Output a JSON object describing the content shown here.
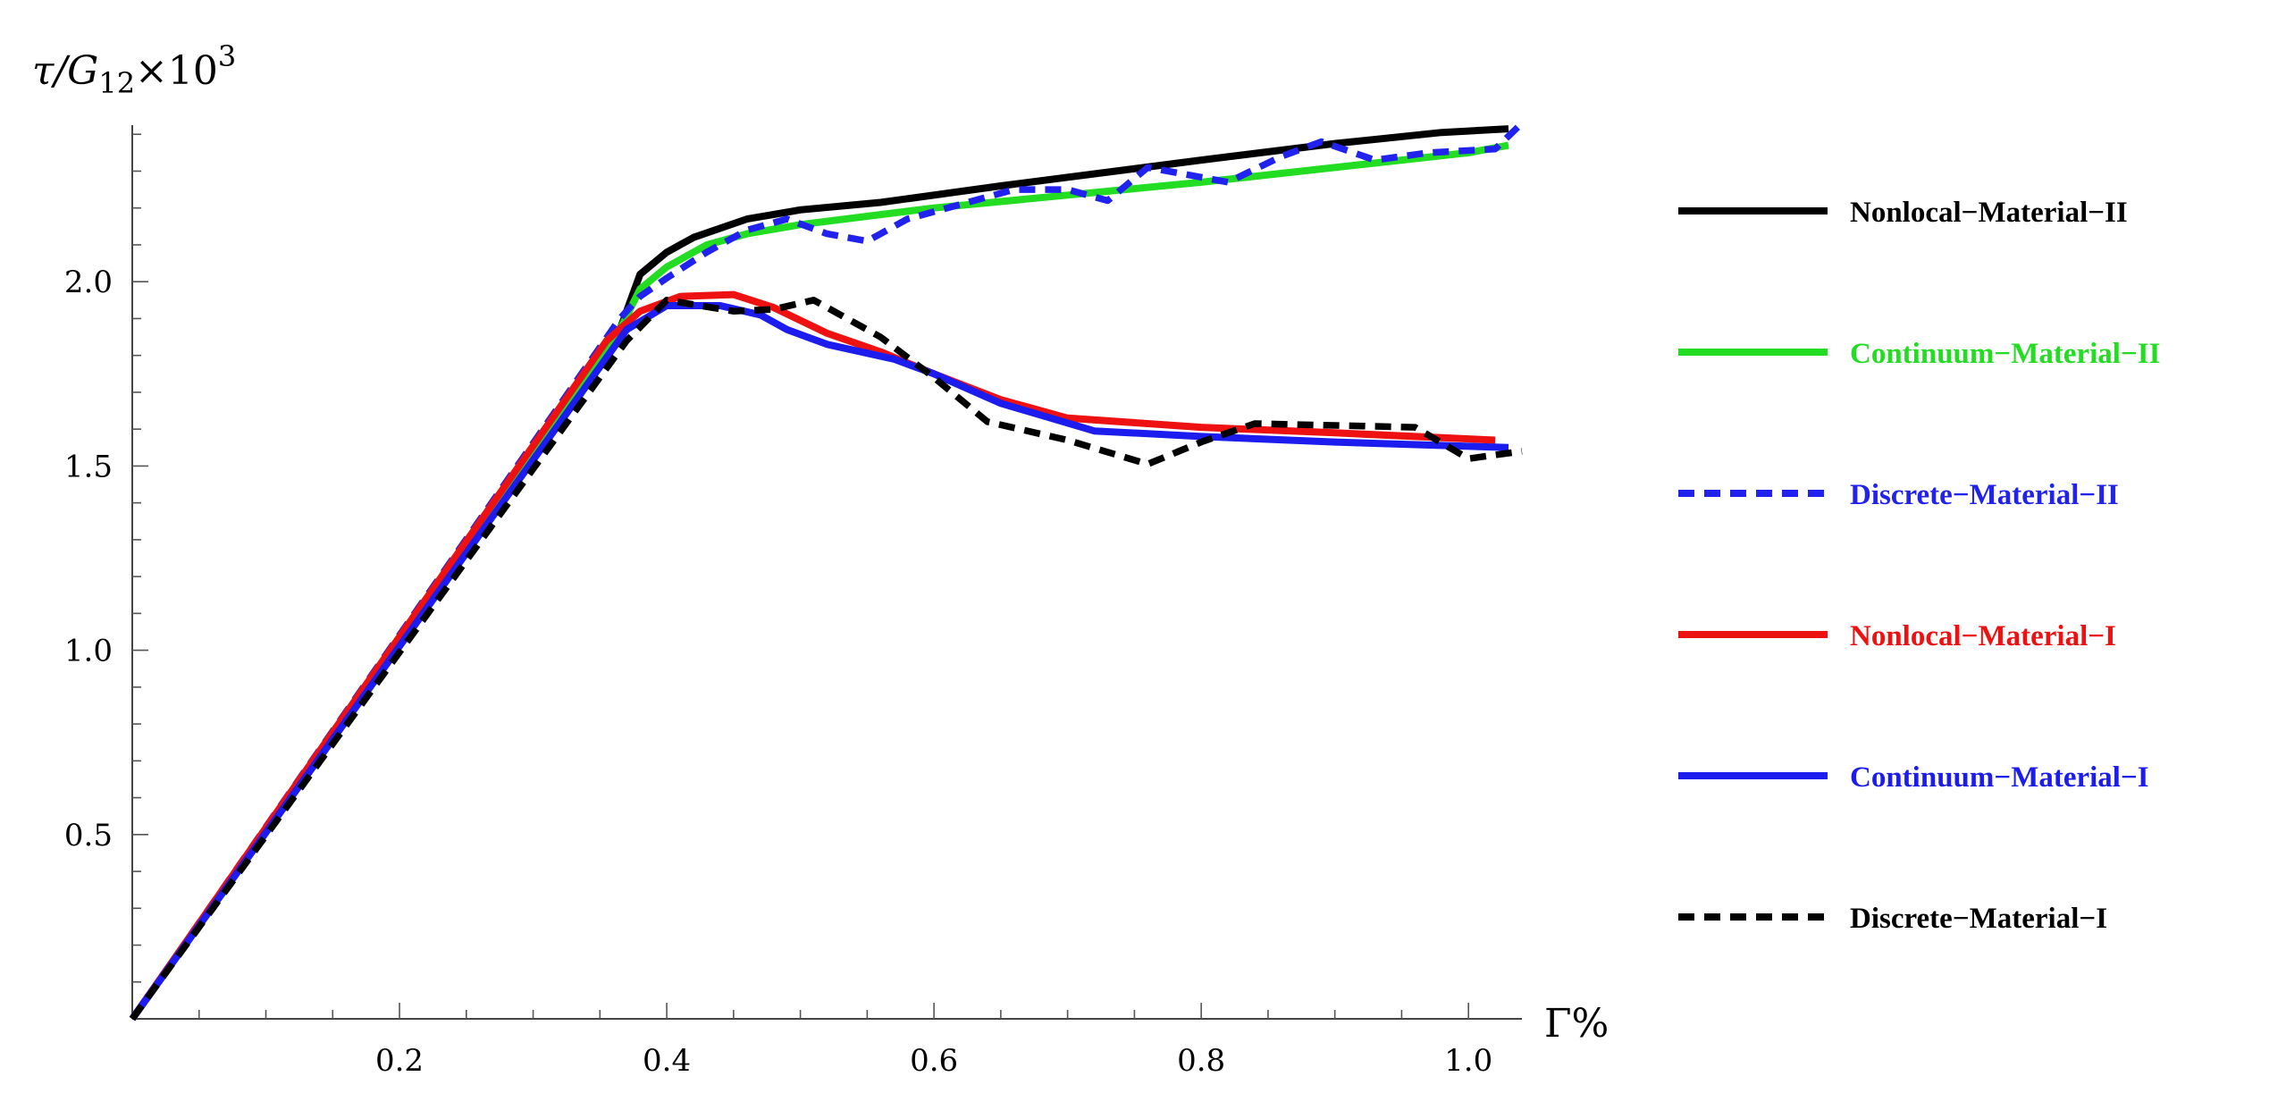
{
  "chart_data": {
    "type": "line",
    "ylabel": "τ/G12×10^3",
    "ylabel_parts": {
      "symbol": "τ/G",
      "subscript": "12",
      "times": "×10",
      "superscript": "3"
    },
    "xlabel": "Γ%",
    "xlim": [
      0,
      1.04
    ],
    "ylim": [
      0,
      2.42
    ],
    "x_ticks": [
      0.2,
      0.4,
      0.6,
      0.8,
      1.0
    ],
    "x_tick_labels": [
      "0.2",
      "0.4",
      "0.6",
      "0.8",
      "1.0"
    ],
    "y_ticks": [
      0.5,
      1.0,
      1.5,
      2.0
    ],
    "y_tick_labels": [
      "0.5",
      "1.0",
      "1.5",
      "2.0"
    ],
    "grid": false,
    "legend_position": "right",
    "series": [
      {
        "name": "Nonlocal−Material−II",
        "color": "#000000",
        "dash": "solid",
        "points": [
          [
            0,
            0
          ],
          [
            0.365,
            1.87
          ],
          [
            0.38,
            2.02
          ],
          [
            0.4,
            2.08
          ],
          [
            0.42,
            2.12
          ],
          [
            0.46,
            2.17
          ],
          [
            0.5,
            2.195
          ],
          [
            0.56,
            2.215
          ],
          [
            0.65,
            2.26
          ],
          [
            0.8,
            2.33
          ],
          [
            0.9,
            2.375
          ],
          [
            0.98,
            2.405
          ],
          [
            1.03,
            2.415
          ]
        ]
      },
      {
        "name": "Continuum−Material−II",
        "color": "#22dd22",
        "dash": "solid",
        "points": [
          [
            0,
            0
          ],
          [
            0.365,
            1.87
          ],
          [
            0.38,
            1.98
          ],
          [
            0.4,
            2.04
          ],
          [
            0.43,
            2.1
          ],
          [
            0.46,
            2.13
          ],
          [
            0.5,
            2.155
          ],
          [
            0.6,
            2.2
          ],
          [
            0.7,
            2.235
          ],
          [
            0.8,
            2.27
          ],
          [
            0.9,
            2.31
          ],
          [
            1.0,
            2.35
          ],
          [
            1.03,
            2.37
          ]
        ]
      },
      {
        "name": "Discrete−Material−II",
        "color": "#2222ee",
        "dash": "dashed",
        "points": [
          [
            0,
            0
          ],
          [
            0.365,
            1.9
          ],
          [
            0.38,
            1.96
          ],
          [
            0.4,
            2.01
          ],
          [
            0.43,
            2.08
          ],
          [
            0.46,
            2.14
          ],
          [
            0.49,
            2.17
          ],
          [
            0.52,
            2.13
          ],
          [
            0.55,
            2.11
          ],
          [
            0.58,
            2.17
          ],
          [
            0.62,
            2.21
          ],
          [
            0.66,
            2.25
          ],
          [
            0.7,
            2.25
          ],
          [
            0.73,
            2.22
          ],
          [
            0.76,
            2.31
          ],
          [
            0.79,
            2.29
          ],
          [
            0.82,
            2.27
          ],
          [
            0.86,
            2.34
          ],
          [
            0.89,
            2.38
          ],
          [
            0.93,
            2.33
          ],
          [
            0.97,
            2.35
          ],
          [
            1.02,
            2.36
          ],
          [
            1.04,
            2.43
          ]
        ]
      },
      {
        "name": "Nonlocal−Material−I",
        "color": "#ee1111",
        "dash": "solid",
        "points": [
          [
            0,
            0
          ],
          [
            0.355,
            1.84
          ],
          [
            0.38,
            1.92
          ],
          [
            0.41,
            1.96
          ],
          [
            0.45,
            1.965
          ],
          [
            0.48,
            1.93
          ],
          [
            0.52,
            1.86
          ],
          [
            0.56,
            1.81
          ],
          [
            0.6,
            1.75
          ],
          [
            0.65,
            1.68
          ],
          [
            0.7,
            1.63
          ],
          [
            0.8,
            1.605
          ],
          [
            0.9,
            1.59
          ],
          [
            1.02,
            1.57
          ]
        ]
      },
      {
        "name": "Continuum−Material−I",
        "color": "#1c1cee",
        "dash": "solid",
        "points": [
          [
            0,
            0
          ],
          [
            0.37,
            1.87
          ],
          [
            0.4,
            1.935
          ],
          [
            0.44,
            1.935
          ],
          [
            0.47,
            1.91
          ],
          [
            0.49,
            1.87
          ],
          [
            0.52,
            1.83
          ],
          [
            0.57,
            1.79
          ],
          [
            0.6,
            1.75
          ],
          [
            0.65,
            1.67
          ],
          [
            0.72,
            1.595
          ],
          [
            0.8,
            1.58
          ],
          [
            0.9,
            1.565
          ],
          [
            1.03,
            1.55
          ]
        ]
      },
      {
        "name": "Discrete−Material−I",
        "color": "#000000",
        "dash": "dashed",
        "points": [
          [
            0,
            0
          ],
          [
            0.37,
            1.84
          ],
          [
            0.4,
            1.95
          ],
          [
            0.45,
            1.92
          ],
          [
            0.48,
            1.925
          ],
          [
            0.51,
            1.95
          ],
          [
            0.56,
            1.85
          ],
          [
            0.6,
            1.74
          ],
          [
            0.64,
            1.62
          ],
          [
            0.7,
            1.57
          ],
          [
            0.76,
            1.505
          ],
          [
            0.8,
            1.565
          ],
          [
            0.84,
            1.615
          ],
          [
            0.9,
            1.61
          ],
          [
            0.96,
            1.605
          ],
          [
            1.0,
            1.52
          ],
          [
            1.04,
            1.54
          ]
        ]
      }
    ]
  }
}
